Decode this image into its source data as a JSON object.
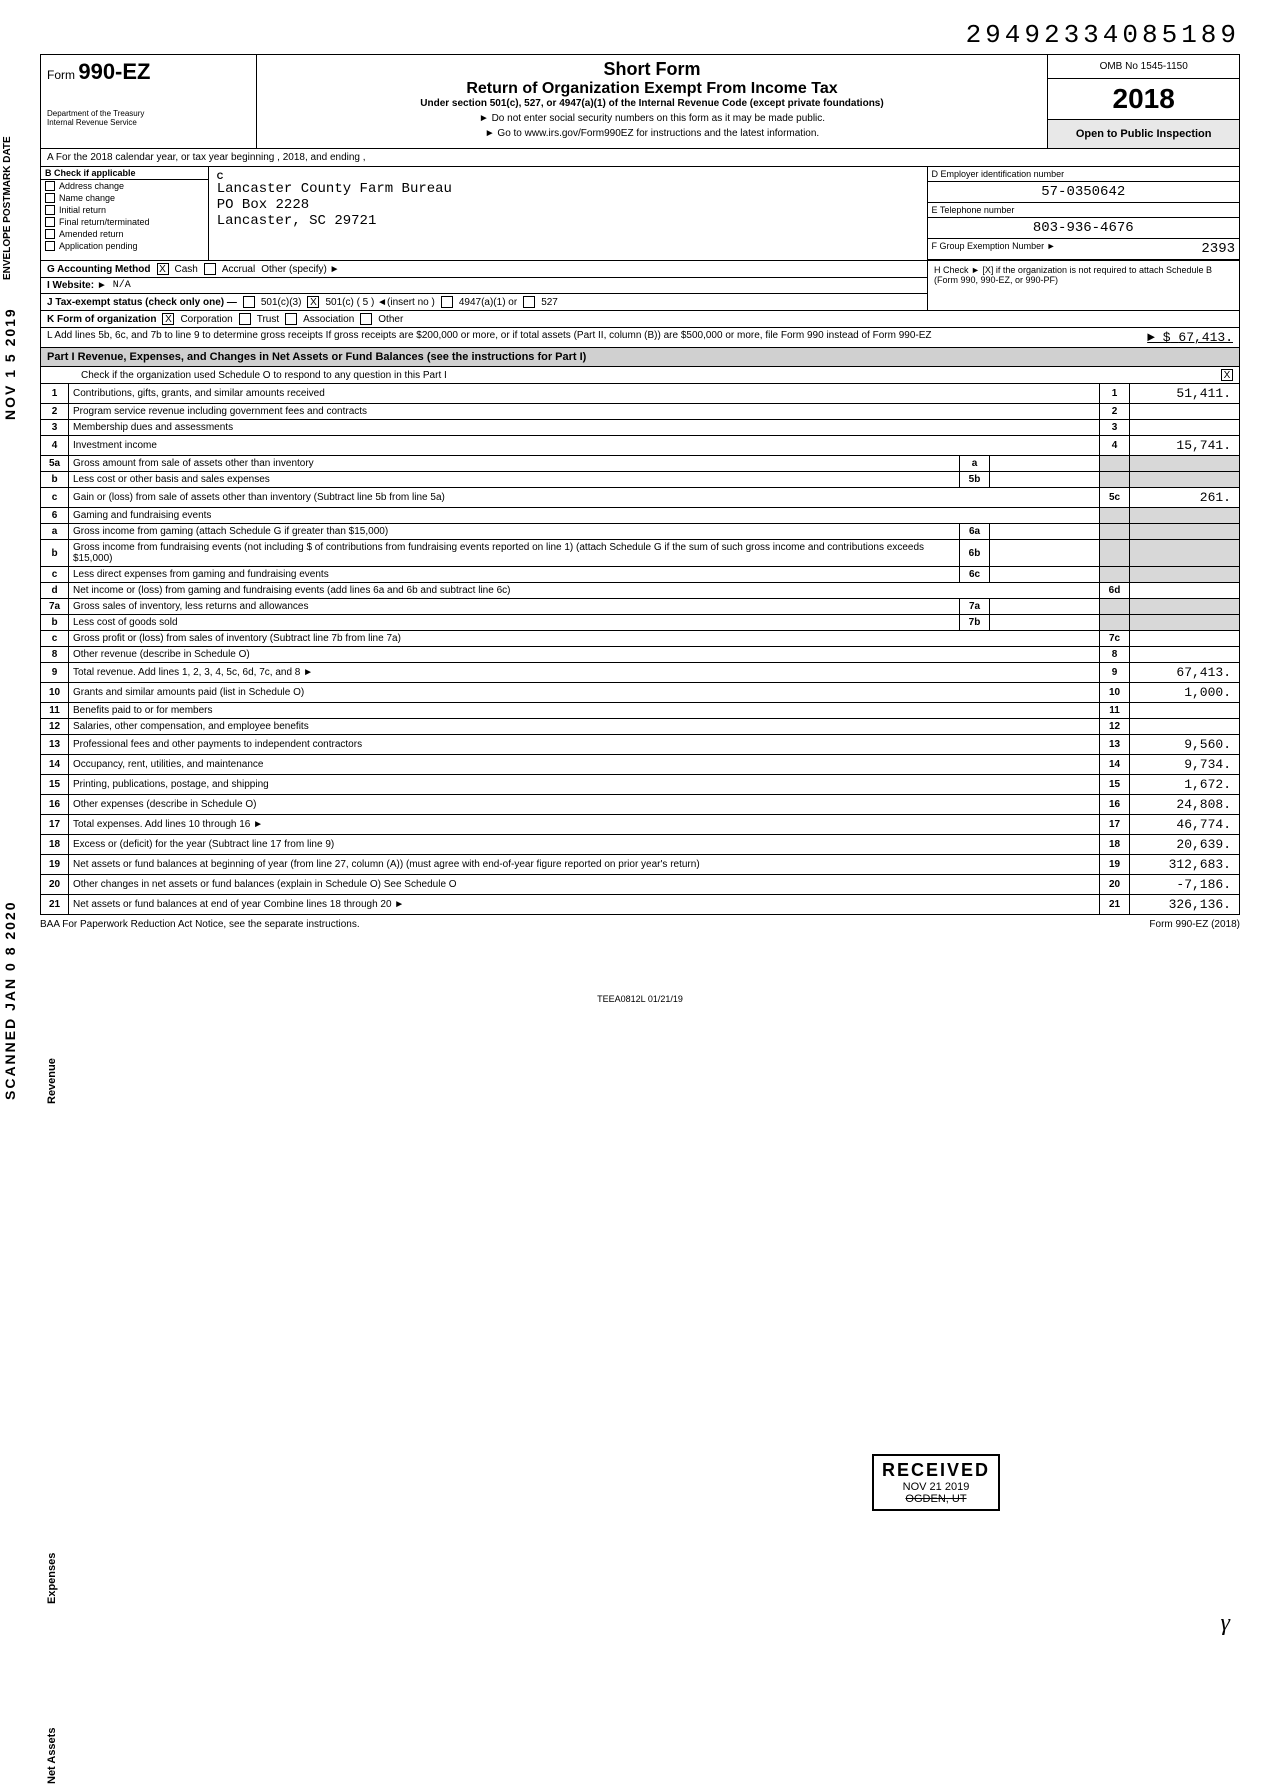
{
  "top_number": "29492334085189",
  "form": {
    "prefix": "Form",
    "number": "990-EZ",
    "dept": "Department of the Treasury\nInternal Revenue Service"
  },
  "header": {
    "short_form": "Short Form",
    "return_title": "Return of Organization Exempt From Income Tax",
    "under": "Under section 501(c), 527, or 4947(a)(1) of the Internal Revenue Code (except private foundations)",
    "note1": "► Do not enter social security numbers on this form as it may be made public.",
    "note2": "► Go to www.irs.gov/Form990EZ for instructions and the latest information.",
    "omb": "OMB No 1545-1150",
    "year": "2018",
    "open": "Open to Public Inspection"
  },
  "rowA": "A  For the 2018 calendar year, or tax year beginning                                             , 2018, and ending                                ,",
  "colB": {
    "hdr": "B  Check if applicable",
    "items": [
      "Address change",
      "Name change",
      "Initial return",
      "Final return/terminated",
      "Amended return",
      "Application pending"
    ]
  },
  "colC": {
    "label": "C",
    "name": "Lancaster County Farm Bureau",
    "addr1": "PO Box 2228",
    "addr2": "Lancaster, SC 29721"
  },
  "colD": {
    "ein_lbl": "D  Employer identification number",
    "ein": "57-0350642",
    "tel_lbl": "E  Telephone number",
    "tel": "803-936-4676",
    "grp_lbl": "F  Group Exemption Number  ►",
    "grp": "2393"
  },
  "rowG": {
    "label": "G  Accounting Method",
    "cash": "Cash",
    "accrual": "Accrual",
    "other": "Other (specify) ►"
  },
  "rowH": "H  Check ► [X] if the organization is not required to attach Schedule B (Form 990, 990-EZ, or 990-PF)",
  "rowI": {
    "label": "I   Website: ►",
    "val": "N/A"
  },
  "rowJ": {
    "label": "J   Tax-exempt status (check only one) —",
    "o1": "501(c)(3)",
    "o2": "501(c) ( 5 )  ◄(insert no )",
    "o3": "4947(a)(1) or",
    "o4": "527"
  },
  "rowK": {
    "label": "K  Form of organization",
    "o1": "Corporation",
    "o2": "Trust",
    "o3": "Association",
    "o4": "Other"
  },
  "rowL": {
    "text": "L   Add lines 5b, 6c, and 7b to line 9 to determine gross receipts  If gross receipts are $200,000 or more, or if total assets (Part II, column (B)) are $500,000 or more, file Form 990 instead of Form 990-EZ",
    "arrow": "► $",
    "amt": "67,413."
  },
  "partI": {
    "hdr": "Part I   Revenue, Expenses, and Changes in Net Assets or Fund Balances (see the instructions for Part I)",
    "sub": "Check if the organization used Schedule O to respond to any question in this Part I"
  },
  "lines": [
    {
      "n": "1",
      "d": "Contributions, gifts, grants, and similar amounts received",
      "b": "1",
      "a": "51,411."
    },
    {
      "n": "2",
      "d": "Program service revenue including government fees and contracts",
      "b": "2",
      "a": ""
    },
    {
      "n": "3",
      "d": "Membership dues and assessments",
      "b": "3",
      "a": ""
    },
    {
      "n": "4",
      "d": "Investment income",
      "b": "4",
      "a": "15,741."
    },
    {
      "n": "5a",
      "d": "Gross amount from sale of assets other than inventory",
      "inner": "a",
      "shade": true
    },
    {
      "n": "b",
      "d": "Less  cost or other basis and sales expenses",
      "inner": "5b",
      "shade": true
    },
    {
      "n": "c",
      "d": "Gain or (loss) from sale of assets other than inventory (Subtract line 5b from line 5a)",
      "b": "5c",
      "a": "261."
    },
    {
      "n": "6",
      "d": "Gaming and fundraising events",
      "shade": true,
      "noright": true
    },
    {
      "n": "a",
      "d": "Gross income from gaming (attach Schedule G if greater than $15,000)",
      "inner": "6a",
      "shade": true
    },
    {
      "n": "b",
      "d": "Gross income from fundraising events (not including $                         of contributions from fundraising events reported on line 1) (attach Schedule G if the sum of such gross income and contributions exceeds $15,000)",
      "inner": "6b",
      "shade": true
    },
    {
      "n": "c",
      "d": "Less  direct expenses from gaming and fundraising events",
      "inner": "6c",
      "shade": true
    },
    {
      "n": "d",
      "d": "Net income or (loss) from gaming and fundraising events (add lines 6a and 6b and subtract line 6c)",
      "b": "6d",
      "a": ""
    },
    {
      "n": "7a",
      "d": "Gross sales of inventory, less returns and allowances",
      "inner": "7a",
      "shade": true
    },
    {
      "n": "b",
      "d": "Less  cost of goods sold",
      "inner": "7b",
      "shade": true
    },
    {
      "n": "c",
      "d": "Gross profit or (loss) from sales of inventory (Subtract line 7b from line 7a)",
      "b": "7c",
      "a": ""
    },
    {
      "n": "8",
      "d": "Other revenue (describe in Schedule O)",
      "b": "8",
      "a": ""
    },
    {
      "n": "9",
      "d": "Total revenue. Add lines 1, 2, 3, 4, 5c, 6d, 7c, and 8",
      "b": "9",
      "a": "67,413.",
      "arrow": true
    },
    {
      "n": "10",
      "d": "Grants and similar amounts paid (list in Schedule O)",
      "b": "10",
      "a": "1,000."
    },
    {
      "n": "11",
      "d": "Benefits paid to or for members",
      "b": "11",
      "a": ""
    },
    {
      "n": "12",
      "d": "Salaries, other compensation, and employee benefits",
      "b": "12",
      "a": ""
    },
    {
      "n": "13",
      "d": "Professional fees and other payments to independent contractors",
      "b": "13",
      "a": "9,560."
    },
    {
      "n": "14",
      "d": "Occupancy, rent, utilities, and maintenance",
      "b": "14",
      "a": "9,734."
    },
    {
      "n": "15",
      "d": "Printing, publications, postage, and shipping",
      "b": "15",
      "a": "1,672."
    },
    {
      "n": "16",
      "d": "Other expenses (describe in Schedule O)",
      "b": "16",
      "a": "24,808."
    },
    {
      "n": "17",
      "d": "Total expenses. Add lines 10 through 16",
      "b": "17",
      "a": "46,774.",
      "arrow": true
    },
    {
      "n": "18",
      "d": "Excess or (deficit) for the year (Subtract line 17 from line 9)",
      "b": "18",
      "a": "20,639."
    },
    {
      "n": "19",
      "d": "Net assets or fund balances at beginning of year (from line 27, column (A)) (must agree with end-of-year figure reported on prior year's return)",
      "b": "19",
      "a": "312,683."
    },
    {
      "n": "20",
      "d": "Other changes in net assets or fund balances (explain in Schedule O)           See Schedule O",
      "b": "20",
      "a": "-7,186."
    },
    {
      "n": "21",
      "d": "Net assets or fund balances at end of year  Combine lines 18 through 20",
      "b": "21",
      "a": "326,136.",
      "arrow": true
    }
  ],
  "baa": {
    "left": "BAA  For Paperwork Reduction Act Notice, see the separate instructions.",
    "right": "Form 990-EZ (2018)"
  },
  "footer_code": "TEEA0812L  01/21/19",
  "stamps": {
    "received": "RECEIVED",
    "recv_date": "NOV 21 2019",
    "recv_loc": "OGDEN, UT",
    "envelope": "ENVELOPE\nPOSTMARK DATE",
    "nov": "NOV 1 5 2019",
    "scanned": "SCANNED  JAN 0 8 2020",
    "side_rev": "Revenue",
    "side_exp": "Expenses",
    "side_net": "Net Assets"
  },
  "style": {
    "bg": "#ffffff",
    "shade": "#d8d8d8",
    "mono": "'Courier New', monospace"
  }
}
